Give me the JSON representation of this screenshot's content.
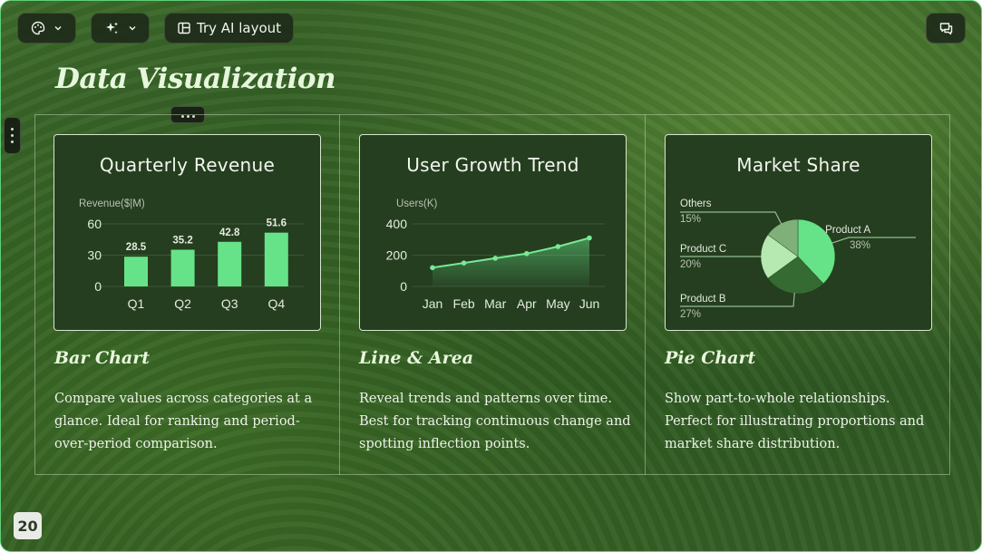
{
  "toolbar": {
    "theme_icon": "palette-icon",
    "ai_icon": "sparkle-icon",
    "layout_icon": "layout-icon",
    "ai_layout_label": "Try AI layout",
    "comment_icon": "chat-icon"
  },
  "slide": {
    "title": "Data Visualization",
    "page_number": "20"
  },
  "sections": [
    {
      "card_title": "Quarterly Revenue",
      "subtitle": "Bar Chart",
      "description": "Compare values across categories at a glance. Ideal for ranking and period-over-period comparison."
    },
    {
      "card_title": "User Growth Trend",
      "subtitle": "Line & Area",
      "description": "Reveal trends and patterns over time. Best for tracking continuous change and spotting inflection points."
    },
    {
      "card_title": "Market Share",
      "subtitle": "Pie Chart",
      "description": "Show part-to-whole relationships. Perfect for illustrating proportions and market share distribution."
    }
  ],
  "colors": {
    "bar": "#66e388",
    "line": "#78ea95",
    "pie": [
      "#66e388",
      "#356b32",
      "#b6e8b2",
      "#7fb07a"
    ]
  },
  "chart_data": [
    {
      "type": "bar",
      "title": "",
      "ylabel": "Revenue($|M)",
      "categories": [
        "Q1",
        "Q2",
        "Q3",
        "Q4"
      ],
      "values": [
        28.5,
        35.2,
        42.8,
        51.6
      ],
      "yticks": [
        "60",
        "30",
        "0"
      ],
      "ylim": [
        0,
        60
      ],
      "data_labels": [
        "28.5",
        "35.2",
        "42.8",
        "51.6"
      ]
    },
    {
      "type": "area",
      "title": "",
      "ylabel": "Users(K)",
      "categories": [
        "Jan",
        "Feb",
        "Mar",
        "Apr",
        "May",
        "Jun"
      ],
      "values": [
        120,
        150,
        180,
        210,
        255,
        310
      ],
      "yticks": [
        "400",
        "200",
        "0"
      ],
      "ylim": [
        0,
        400
      ]
    },
    {
      "type": "pie",
      "title": "",
      "series": [
        {
          "name": "Product A",
          "label": "38%",
          "value": 38
        },
        {
          "name": "Product B",
          "label": "27%",
          "value": 27
        },
        {
          "name": "Product C",
          "label": "20%",
          "value": 20
        },
        {
          "name": "Others",
          "label": "15%",
          "value": 15
        }
      ]
    }
  ]
}
